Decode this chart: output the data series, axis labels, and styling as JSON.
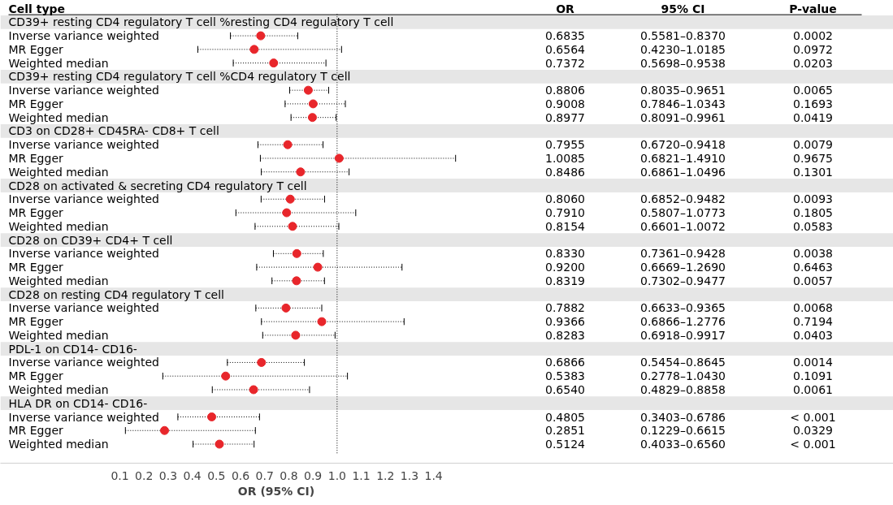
{
  "chart_data": {
    "type": "scatter",
    "orientation": "horizontal",
    "ylabel": "Cell type",
    "xlabel": "OR (95% CI)",
    "categories": [
      "CD39+ resting CD4 regulatory T cell %resting CD4 regulatory T cell",
      "Inverse variance weighted",
      "MR Egger",
      "Weighted median",
      "CD39+ resting CD4 regulatory T cell %CD4 regulatory T cell",
      "Inverse variance weighted",
      "MR Egger",
      "Weighted median",
      "CD3 on CD28+ CD45RA- CD8+ T cell",
      "Inverse variance weighted",
      "MR Egger",
      "Weighted median",
      "CD28 on activated & secreting CD4 regulatory T cell",
      "Inverse variance weighted",
      "MR Egger",
      "Weighted median",
      "CD28 on CD39+ CD4+ T cell",
      "Inverse variance weighted",
      "MR Egger",
      "Weighted median",
      "CD28 on resting CD4 regulatory T cell",
      "Inverse variance weighted",
      "MR Egger",
      "Weighted median",
      "PDL-1 on CD14- CD16-",
      "Inverse variance weighted",
      "MR Egger",
      "Weighted median",
      "HLA DR on CD14- CD16-",
      "Inverse variance weighted",
      "MR Egger",
      "Weighted median"
    ],
    "values": [
      null,
      0.6835,
      0.6564,
      0.7372,
      null,
      0.8806,
      0.9008,
      0.8977,
      null,
      0.7955,
      1.0085,
      0.8486,
      null,
      0.806,
      0.791,
      0.8154,
      null,
      0.833,
      0.92,
      0.8319,
      null,
      0.7882,
      0.9366,
      0.8283,
      null,
      0.6866,
      0.5383,
      0.654,
      null,
      0.4805,
      0.2851,
      0.5124
    ],
    "errors": [
      null,
      [
        0.5581,
        0.837
      ],
      [
        0.423,
        1.0185
      ],
      [
        0.5698,
        0.9538
      ],
      null,
      [
        0.8035,
        0.9651
      ],
      [
        0.7846,
        1.0343
      ],
      [
        0.8091,
        0.9961
      ],
      null,
      [
        0.672,
        0.9418
      ],
      [
        0.6821,
        1.491
      ],
      [
        0.6861,
        1.0496
      ],
      null,
      [
        0.6852,
        0.9482
      ],
      [
        0.5807,
        1.0773
      ],
      [
        0.6601,
        1.0072
      ],
      null,
      [
        0.7361,
        0.9428
      ],
      [
        0.6669,
        1.269
      ],
      [
        0.7302,
        0.9477
      ],
      null,
      [
        0.6633,
        0.9365
      ],
      [
        0.6866,
        1.2776
      ],
      [
        0.6918,
        0.9917
      ],
      null,
      [
        0.5454,
        0.8645
      ],
      [
        0.2778,
        1.043
      ],
      [
        0.4829,
        0.8858
      ],
      null,
      [
        0.3403,
        0.6786
      ],
      [
        0.1229,
        0.6615
      ],
      [
        0.4033,
        0.656
      ]
    ],
    "color": "#e8262b",
    "marker": "circle",
    "grid": false,
    "xlim": [
      -0.395,
      3.305
    ],
    "xticks": [
      0.1,
      0.2,
      0.3,
      0.4,
      0.5,
      0.6,
      0.7,
      0.8,
      0.9,
      {
        "value": 1.0,
        "label": "1.0"
      },
      1.1,
      1.2,
      1.3,
      1.4
    ],
    "ref_lines": [
      {
        "axis": "x",
        "value": 1.0,
        "line_style": "dotted",
        "color": "#000000"
      }
    ],
    "annotations": [
      "OR",
      "95% CI",
      "P-value",
      "0.6835",
      "0.5581–0.8370",
      "0.0002",
      "0.6564",
      "0.4230–1.0185",
      "0.0972",
      "0.7372",
      "0.5698–0.9538",
      "0.0203",
      "0.8806",
      "0.8035–0.9651",
      "0.0065",
      "0.9008",
      "0.7846–1.0343",
      "0.1693",
      "0.8977",
      "0.8091–0.9961",
      "0.0419",
      "0.7955",
      "0.6720–0.9418",
      "0.0079",
      "1.0085",
      "0.6821–1.4910",
      "0.9675",
      "0.8486",
      "0.6861–1.0496",
      "0.1301",
      "0.8060",
      "0.6852–0.9482",
      "0.0093",
      "0.7910",
      "0.5807–1.0773",
      "0.1805",
      "0.8154",
      "0.6601–1.0072",
      "0.0583",
      "0.8330",
      "0.7361–0.9428",
      "0.0038",
      "0.9200",
      "0.6669–1.2690",
      "0.6463",
      "0.8319",
      "0.7302–0.9477",
      "0.0057",
      "0.7882",
      "0.6633–0.9365",
      "0.0068",
      "0.9366",
      "0.6866–1.2776",
      "0.7194",
      "0.8283",
      "0.6918–0.9917",
      "0.0403",
      "0.6866",
      "0.5454–0.8645",
      "0.0014",
      "0.5383",
      "0.2778–1.0430",
      "0.1091",
      "0.6540",
      "0.4829–0.8858",
      "0.0061",
      "0.4805",
      "0.3403–0.6786",
      "< 0.001",
      "0.2851",
      "0.1229–0.6615",
      "0.0329",
      "0.5124",
      "0.4033–0.6560",
      "< 0.001"
    ]
  }
}
